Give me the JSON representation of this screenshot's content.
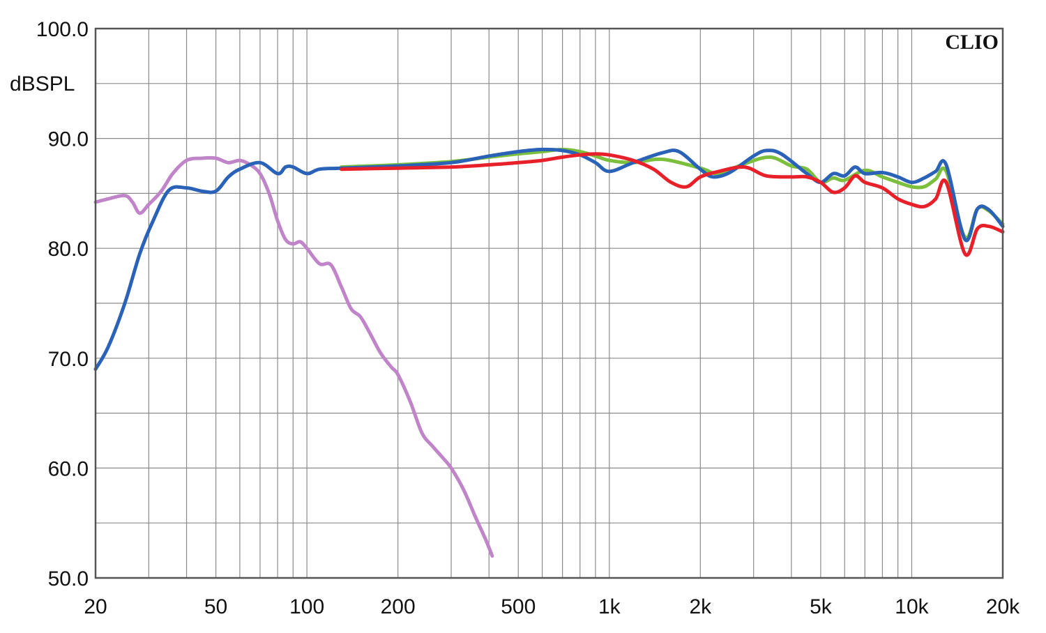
{
  "chart_data": {
    "type": "line",
    "title": "",
    "xlabel": "",
    "ylabel": "dBSPL",
    "brand": "CLIO",
    "x_scale": "log",
    "xlim": [
      20,
      20000
    ],
    "ylim": [
      50,
      100
    ],
    "grid": true,
    "legend": "none",
    "x_ticks": [
      {
        "value": 20,
        "label": "20"
      },
      {
        "value": 50,
        "label": "50"
      },
      {
        "value": 100,
        "label": "100"
      },
      {
        "value": 200,
        "label": "200"
      },
      {
        "value": 500,
        "label": "500"
      },
      {
        "value": 1000,
        "label": "1k"
      },
      {
        "value": 2000,
        "label": "2k"
      },
      {
        "value": 5000,
        "label": "5k"
      },
      {
        "value": 10000,
        "label": "10k"
      },
      {
        "value": 20000,
        "label": "20k"
      }
    ],
    "y_ticks": [
      {
        "value": 100,
        "label": "100.0"
      },
      {
        "value": 90,
        "label": "90.0"
      },
      {
        "value": 80,
        "label": "80.0"
      },
      {
        "value": 70,
        "label": "70.0"
      },
      {
        "value": 60,
        "label": "60.0"
      },
      {
        "value": 50,
        "label": "50.0"
      }
    ],
    "series": [
      {
        "color": "#c084c8",
        "points": [
          [
            20,
            84.2
          ],
          [
            22,
            84.5
          ],
          [
            25,
            84.8
          ],
          [
            26.5,
            84.2
          ],
          [
            28,
            83.2
          ],
          [
            30,
            84.0
          ],
          [
            33,
            85.2
          ],
          [
            36,
            86.8
          ],
          [
            40,
            88.0
          ],
          [
            45,
            88.2
          ],
          [
            50,
            88.2
          ],
          [
            55,
            87.8
          ],
          [
            60,
            88.0
          ],
          [
            65,
            87.6
          ],
          [
            70,
            86.8
          ],
          [
            75,
            85.0
          ],
          [
            80,
            82.5
          ],
          [
            85,
            80.8
          ],
          [
            90,
            80.4
          ],
          [
            95,
            80.6
          ],
          [
            100,
            80.0
          ],
          [
            110,
            78.6
          ],
          [
            120,
            78.5
          ],
          [
            130,
            76.5
          ],
          [
            140,
            74.5
          ],
          [
            150,
            73.8
          ],
          [
            160,
            72.5
          ],
          [
            175,
            70.5
          ],
          [
            190,
            69.2
          ],
          [
            200,
            68.5
          ],
          [
            220,
            66.0
          ],
          [
            240,
            63.2
          ],
          [
            260,
            62.0
          ],
          [
            280,
            61.0
          ],
          [
            300,
            60.0
          ],
          [
            330,
            58.0
          ],
          [
            360,
            55.6
          ],
          [
            390,
            53.5
          ],
          [
            410,
            52.0
          ]
        ]
      },
      {
        "color": "#7cbf3c",
        "points": [
          [
            130,
            87.4
          ],
          [
            200,
            87.6
          ],
          [
            300,
            87.9
          ],
          [
            400,
            88.3
          ],
          [
            500,
            88.6
          ],
          [
            600,
            88.8
          ],
          [
            700,
            89.0
          ],
          [
            800,
            88.8
          ],
          [
            900,
            88.4
          ],
          [
            1000,
            88.0
          ],
          [
            1200,
            87.8
          ],
          [
            1500,
            88.1
          ],
          [
            2000,
            87.3
          ],
          [
            2300,
            86.8
          ],
          [
            2800,
            87.7
          ],
          [
            3400,
            88.3
          ],
          [
            4000,
            87.5
          ],
          [
            4500,
            87.2
          ],
          [
            5000,
            86.0
          ],
          [
            5500,
            86.4
          ],
          [
            6000,
            86.2
          ],
          [
            7000,
            87.1
          ],
          [
            8000,
            86.5
          ],
          [
            9000,
            86.0
          ],
          [
            10000,
            85.6
          ],
          [
            11000,
            85.6
          ],
          [
            12000,
            86.3
          ],
          [
            13000,
            87.0
          ],
          [
            15000,
            81.0
          ],
          [
            16500,
            83.6
          ],
          [
            18000,
            83.4
          ],
          [
            20000,
            82.2
          ]
        ]
      },
      {
        "color": "#2a62b8",
        "points": [
          [
            20,
            69.0
          ],
          [
            22,
            71.0
          ],
          [
            25,
            75.0
          ],
          [
            28,
            79.5
          ],
          [
            31,
            82.5
          ],
          [
            35,
            85.3
          ],
          [
            40,
            85.5
          ],
          [
            45,
            85.2
          ],
          [
            50,
            85.2
          ],
          [
            55,
            86.5
          ],
          [
            60,
            87.2
          ],
          [
            70,
            87.8
          ],
          [
            80,
            86.8
          ],
          [
            85,
            87.4
          ],
          [
            90,
            87.4
          ],
          [
            100,
            86.8
          ],
          [
            110,
            87.2
          ],
          [
            130,
            87.3
          ],
          [
            200,
            87.5
          ],
          [
            300,
            87.8
          ],
          [
            400,
            88.4
          ],
          [
            500,
            88.8
          ],
          [
            600,
            89.0
          ],
          [
            700,
            88.9
          ],
          [
            800,
            88.5
          ],
          [
            900,
            87.8
          ],
          [
            1000,
            87.0
          ],
          [
            1200,
            87.8
          ],
          [
            1500,
            88.7
          ],
          [
            1700,
            88.8
          ],
          [
            2000,
            87.2
          ],
          [
            2200,
            86.5
          ],
          [
            2500,
            86.9
          ],
          [
            3000,
            88.4
          ],
          [
            3300,
            88.9
          ],
          [
            3700,
            88.6
          ],
          [
            4500,
            86.8
          ],
          [
            5000,
            86.0
          ],
          [
            5500,
            86.8
          ],
          [
            6000,
            86.6
          ],
          [
            6500,
            87.4
          ],
          [
            7000,
            86.8
          ],
          [
            8000,
            86.9
          ],
          [
            9000,
            86.5
          ],
          [
            10000,
            86.0
          ],
          [
            11000,
            86.4
          ],
          [
            12000,
            87.0
          ],
          [
            13000,
            87.6
          ],
          [
            15000,
            80.8
          ],
          [
            16500,
            83.6
          ],
          [
            18000,
            83.5
          ],
          [
            20000,
            82.0
          ]
        ]
      },
      {
        "color": "#e8202a",
        "points": [
          [
            130,
            87.2
          ],
          [
            200,
            87.3
          ],
          [
            300,
            87.4
          ],
          [
            400,
            87.6
          ],
          [
            500,
            87.8
          ],
          [
            600,
            88.0
          ],
          [
            700,
            88.3
          ],
          [
            800,
            88.5
          ],
          [
            900,
            88.6
          ],
          [
            1000,
            88.5
          ],
          [
            1200,
            88.0
          ],
          [
            1400,
            87.2
          ],
          [
            1600,
            86.0
          ],
          [
            1800,
            85.6
          ],
          [
            2000,
            86.5
          ],
          [
            2300,
            87.0
          ],
          [
            2800,
            87.4
          ],
          [
            3300,
            86.6
          ],
          [
            4000,
            86.5
          ],
          [
            4500,
            86.5
          ],
          [
            5000,
            86.0
          ],
          [
            5500,
            85.1
          ],
          [
            6000,
            85.5
          ],
          [
            6500,
            86.6
          ],
          [
            7000,
            86.0
          ],
          [
            8000,
            85.5
          ],
          [
            9000,
            84.5
          ],
          [
            10000,
            84.0
          ],
          [
            11000,
            83.8
          ],
          [
            12000,
            84.5
          ],
          [
            13000,
            86.0
          ],
          [
            15000,
            79.5
          ],
          [
            16500,
            81.8
          ],
          [
            18000,
            82.0
          ],
          [
            20000,
            81.5
          ]
        ]
      }
    ]
  }
}
